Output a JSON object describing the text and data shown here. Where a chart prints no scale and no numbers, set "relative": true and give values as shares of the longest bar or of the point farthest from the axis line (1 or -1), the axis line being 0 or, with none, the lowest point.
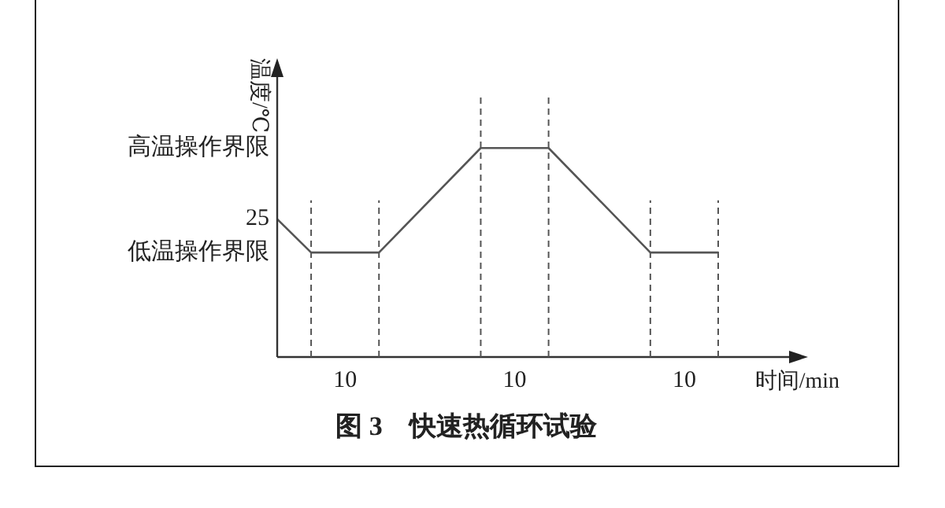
{
  "chart_data": {
    "type": "line",
    "relative": true,
    "title": "图 3　快速热循环试验",
    "xlabel": "时间/min",
    "ylabel": "温度/℃",
    "categories": [
      null,
      null,
      null,
      null,
      null,
      null,
      null,
      null,
      null,
      null,
      null,
      null,
      null,
      null
    ],
    "series": [
      {
        "color": "#555555",
        "values": [
          0.66,
          0.5,
          null,
          0.5,
          null,
          null,
          1,
          null,
          1,
          null,
          null,
          0.5,
          null,
          0.5
        ]
      }
    ],
    "marker": "none",
    "line_style": "solid",
    "grid": "x",
    "annotations": [
      "高温操作界限",
      "25",
      "低温操作界限",
      "10",
      "10",
      "10"
    ]
  }
}
